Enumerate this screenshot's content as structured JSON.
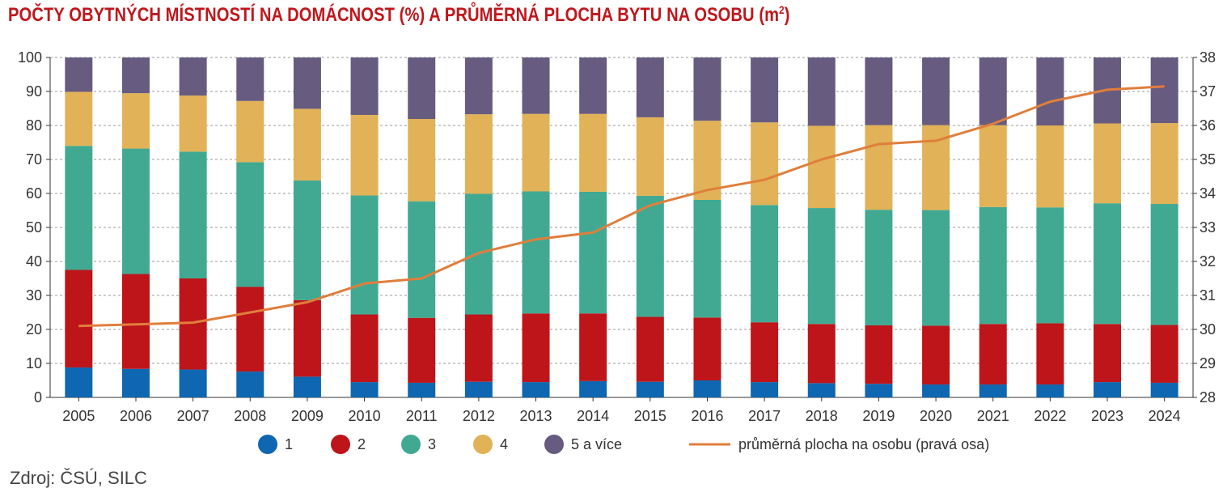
{
  "chart_data": {
    "type": "bar",
    "stacked": true,
    "title_main": "POČTY OBYTNÝCH MÍSTNOSTÍ NA DOMÁCNOST (%) A PRŮMĚRNÁ PLOCHA BYTU NA OSOBU (m",
    "title_sup": "2",
    "title_end": ")",
    "categories": [
      "2005",
      "2006",
      "2007",
      "2008",
      "2009",
      "2010",
      "2011",
      "2012",
      "2013",
      "2014",
      "2015",
      "2016",
      "2017",
      "2018",
      "2019",
      "2020",
      "2021",
      "2022",
      "2023",
      "2024"
    ],
    "ylim": [
      0,
      100
    ],
    "y_ticks": [
      "0",
      "10",
      "20",
      "30",
      "40",
      "50",
      "60",
      "70",
      "80",
      "90",
      "100"
    ],
    "y2lim": [
      28,
      38
    ],
    "y2_ticks": [
      "28",
      "29",
      "30",
      "31",
      "32",
      "33",
      "34",
      "35",
      "36",
      "37",
      "38"
    ],
    "grid": true,
    "legend_position": "bottom",
    "series": [
      {
        "name": "1",
        "color": "#0f66b1",
        "values": [
          8.8,
          8.4,
          8.2,
          7.6,
          6.1,
          4.5,
          4.3,
          4.6,
          4.5,
          4.8,
          4.6,
          5.0,
          4.5,
          4.2,
          4.0,
          3.8,
          3.8,
          3.8,
          4.5,
          4.3
        ]
      },
      {
        "name": "2",
        "color": "#bd1519",
        "values": [
          28.7,
          27.9,
          26.8,
          24.9,
          22.5,
          19.9,
          19.1,
          19.8,
          20.2,
          19.9,
          19.1,
          18.5,
          17.6,
          17.4,
          17.2,
          17.3,
          17.8,
          18.0,
          17.1,
          17.0
        ]
      },
      {
        "name": "3",
        "color": "#41a992",
        "values": [
          36.5,
          36.9,
          37.3,
          36.7,
          35.2,
          35.0,
          34.3,
          35.5,
          35.9,
          35.8,
          35.6,
          34.6,
          34.5,
          34.1,
          34.0,
          34.0,
          34.4,
          34.1,
          35.5,
          35.6
        ]
      },
      {
        "name": "4",
        "color": "#e1b257",
        "values": [
          15.9,
          16.3,
          16.5,
          18.0,
          21.1,
          23.7,
          24.2,
          23.4,
          22.8,
          22.9,
          23.1,
          23.3,
          24.3,
          24.2,
          24.9,
          25.0,
          24.1,
          24.1,
          23.5,
          23.8
        ]
      },
      {
        "name": "5 a více",
        "color": "#675b7f",
        "values": [
          10.1,
          10.5,
          11.2,
          12.8,
          15.1,
          16.9,
          18.1,
          16.7,
          16.6,
          16.6,
          17.6,
          18.6,
          19.1,
          20.1,
          19.9,
          19.9,
          19.9,
          20.0,
          19.4,
          19.3
        ]
      }
    ],
    "line_series": {
      "name": "průměrná plocha na osobu (pravá osa)",
      "color": "#e07e3c",
      "axis": "right",
      "values": [
        30.1,
        30.15,
        30.2,
        30.5,
        30.8,
        31.35,
        31.5,
        32.25,
        32.65,
        32.85,
        33.65,
        34.1,
        34.4,
        35.0,
        35.45,
        35.55,
        36.05,
        36.7,
        37.05,
        37.15
      ]
    }
  },
  "source": "Zdroj: ČSÚ, SILC"
}
